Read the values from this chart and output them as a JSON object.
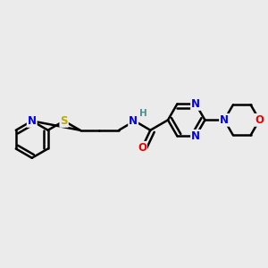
{
  "background_color": "#ebebeb",
  "bond_color": "#000000",
  "bond_width": 1.8,
  "atom_colors": {
    "C": "#000000",
    "N": "#0000ee",
    "O": "#ee0000",
    "S": "#bbaa00",
    "H": "#4a9090"
  },
  "font_size": 8.5,
  "figsize": [
    3.0,
    3.0
  ],
  "dpi": 100
}
